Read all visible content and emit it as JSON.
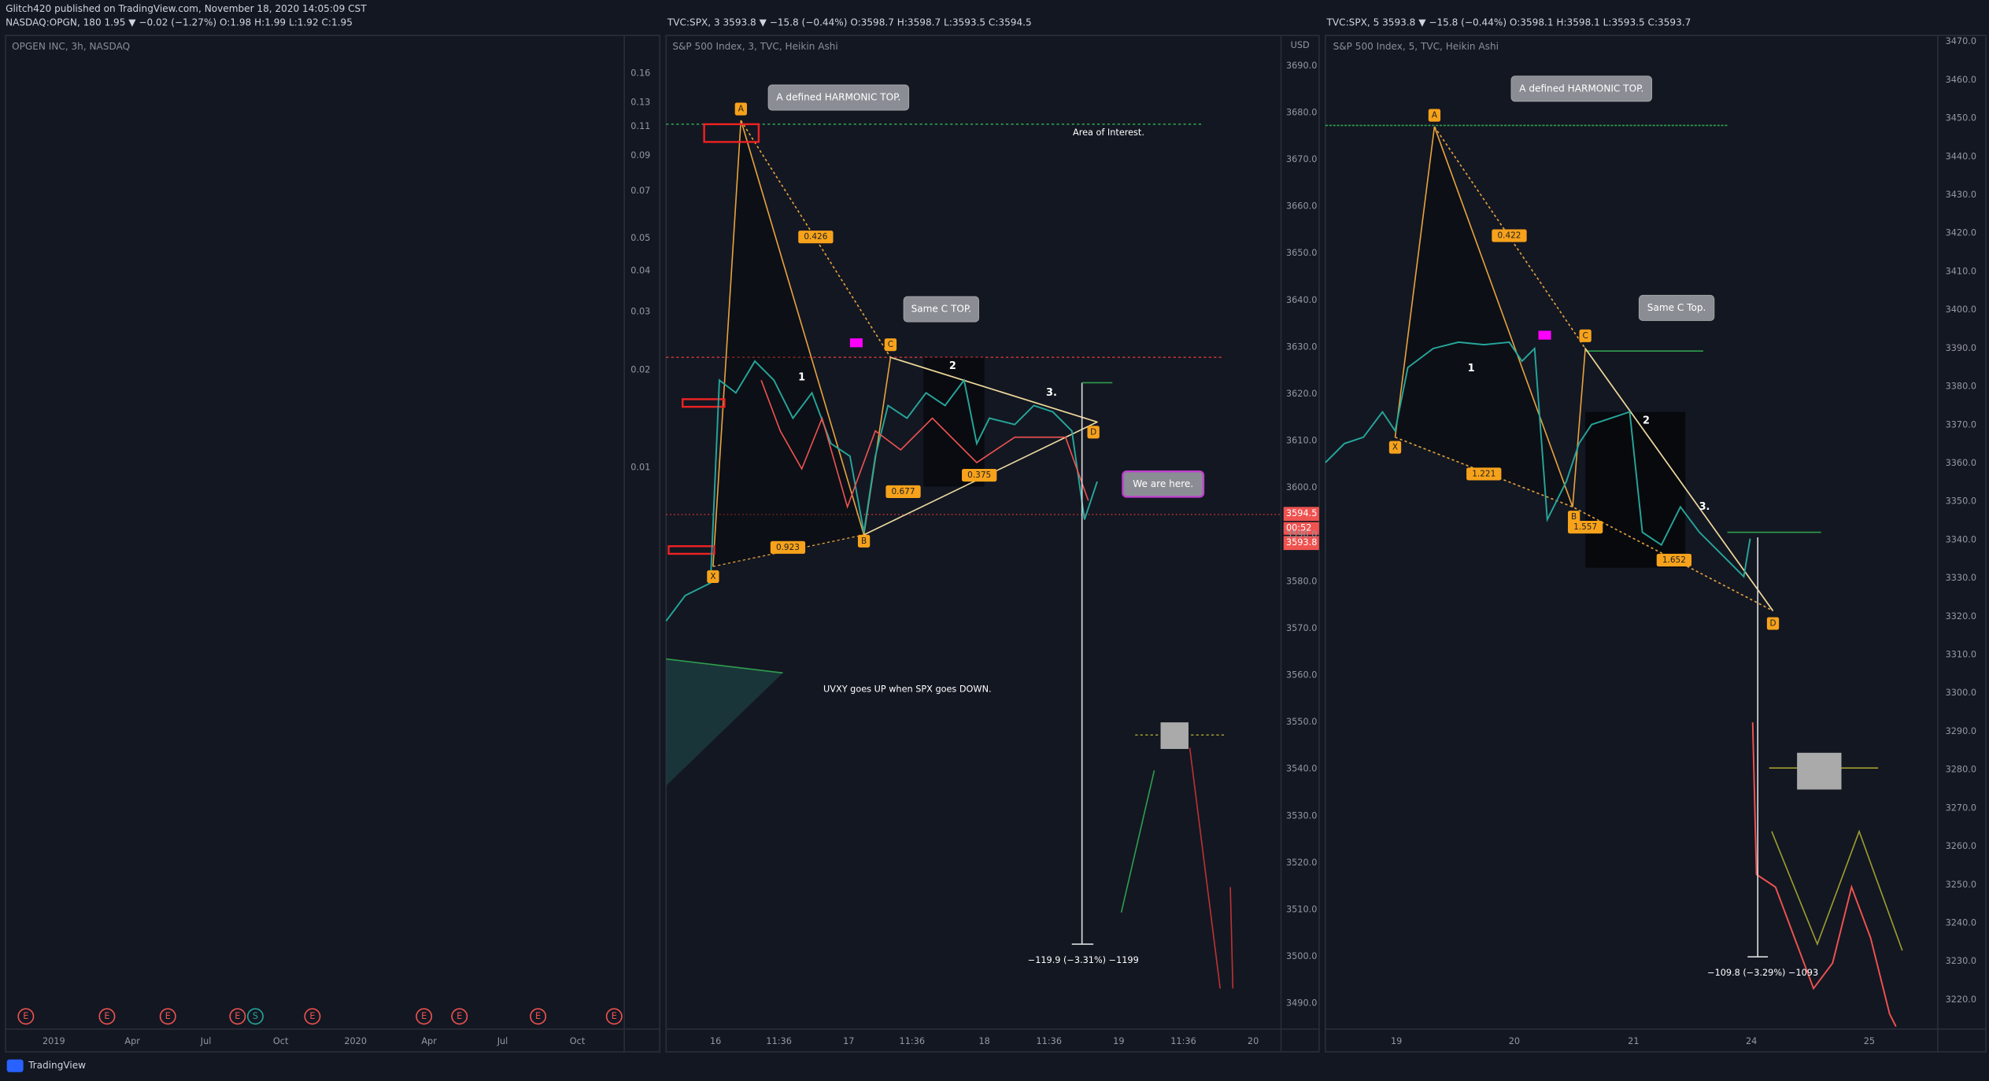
{
  "header": {
    "publisher": "Glitch420 published on TradingView.com, November 18, 2020 14:05:09 CST",
    "symbol_line": "NASDAQ:OPGN, 180 1.95 ▼ −0.02 (−1.27%) O:1.98 H:1.99 L:1.92 C:1.95"
  },
  "panels": [
    {
      "title": "OPGEN INC, 3h, NASDAQ",
      "y_labels": [
        "0.16",
        "0.13",
        "0.11",
        "0.09",
        "0.07",
        "0.05",
        "0.04",
        "0.03",
        "0.02",
        "0.01"
      ],
      "x_labels": [
        "2019",
        "Apr",
        "Jul",
        "Oct",
        "2020",
        "Apr",
        "Jul",
        "Oct"
      ],
      "events": [
        "E",
        "E",
        "E",
        "E",
        "S",
        "E",
        "E",
        "E",
        "E",
        "E"
      ],
      "annotations": []
    },
    {
      "symbol_line": "TVC:SPX, 3 3593.8 ▼ −15.8 (−0.44%) O:3598.7 H:3598.7 L:3593.5 C:3594.5",
      "title": "S&P 500 Index, 3, TVC, Heikin Ashi",
      "currency": "USD",
      "y_labels": [
        "3690.0",
        "3680.0",
        "3670.0",
        "3660.0",
        "3650.0",
        "3640.0",
        "3630.0",
        "3620.0",
        "3610.0",
        "3600.0",
        "3590.0",
        "3580.0",
        "3570.0",
        "3560.0",
        "3550.0",
        "3540.0",
        "3530.0",
        "3520.0",
        "3510.0",
        "3500.0",
        "3490.0"
      ],
      "price_tags": [
        "3594.5",
        "00:52",
        "3593.8"
      ],
      "x_labels": [
        "16",
        "11:36",
        "17",
        "11:36",
        "18",
        "11:36",
        "19",
        "11:36",
        "20"
      ],
      "annotations": [
        "A defined HARMONIC TOP.",
        "Same C TOP.",
        "We are here.",
        "Area of Interest.",
        "UVXY goes UP when SPX goes DOWN.",
        "−119.9 (−3.31%) −1199",
        "A",
        "X",
        "B",
        "C",
        "D",
        "0.426",
        "0.923",
        "0.677",
        "0.375",
        "1",
        "2",
        "3."
      ]
    },
    {
      "symbol_line": "TVC:SPX, 5 3593.8 ▼ −15.8 (−0.44%) O:3598.1 H:3598.1 L:3593.5 C:3593.7",
      "title": "S&P 500 Index, 5, TVC, Heikin Ashi",
      "y_labels": [
        "3470.0",
        "3460.0",
        "3450.0",
        "3440.0",
        "3430.0",
        "3420.0",
        "3410.0",
        "3400.0",
        "3390.0",
        "3380.0",
        "3370.0",
        "3360.0",
        "3350.0",
        "3340.0",
        "3330.0",
        "3320.0",
        "3310.0",
        "3300.0",
        "3290.0",
        "3280.0",
        "3270.0",
        "3260.0",
        "3250.0",
        "3240.0",
        "3230.0",
        "3220.0"
      ],
      "x_labels": [
        "19",
        "20",
        "21",
        "24",
        "25"
      ],
      "annotations": [
        "A defined HARMONIC TOP.",
        "Same C Top.",
        "−109.8 (−3.29%) −1093",
        "A",
        "X",
        "B",
        "C",
        "D",
        "0.422",
        "1.221",
        "1.557",
        "1.652",
        "1",
        "2",
        "3."
      ]
    }
  ],
  "footer": {
    "brand": "TradingView"
  }
}
